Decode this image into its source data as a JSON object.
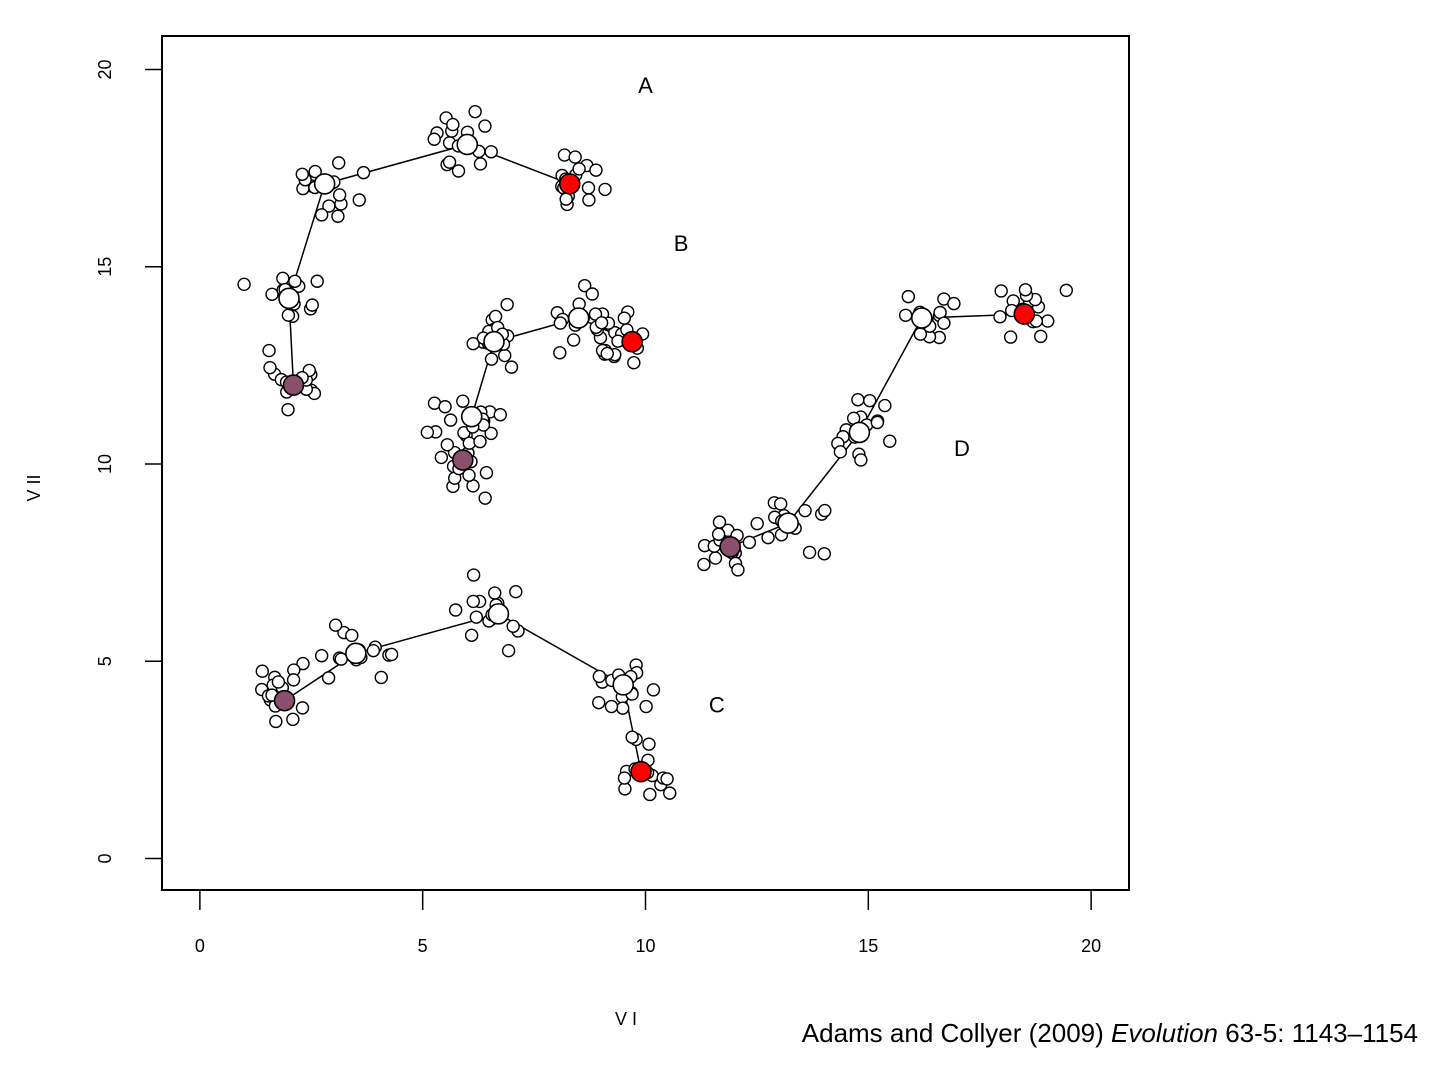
{
  "chart_data": {
    "type": "scatter",
    "title": "",
    "xlabel": "V I",
    "ylabel": "V II",
    "xlim": [
      -0.85,
      20.85
    ],
    "ylim": [
      -0.8,
      20.85
    ],
    "xticks": [
      "0",
      "5",
      "10",
      "15",
      "20"
    ],
    "yticks": [
      "0",
      "5",
      "10",
      "15",
      "20"
    ],
    "grid": false,
    "legend": "none",
    "colors": {
      "point_fill": "#ffffff",
      "point_stroke": "#000000",
      "start_fill": "#8b4f6e",
      "end_fill": "#ff0000",
      "path": "#000000"
    },
    "groups": [
      {
        "label": "A",
        "label_pos": [
          10.0,
          19.4
        ],
        "means": [
          [
            2.1,
            12.0
          ],
          [
            2.0,
            14.2
          ],
          [
            2.8,
            17.1
          ],
          [
            6.0,
            18.1
          ],
          [
            8.3,
            17.1
          ]
        ],
        "start_index": 0,
        "end_index": 4
      },
      {
        "label": "B",
        "label_pos": [
          10.8,
          15.4
        ],
        "means": [
          [
            5.9,
            10.1
          ],
          [
            6.1,
            11.2
          ],
          [
            6.6,
            13.1
          ],
          [
            8.5,
            13.7
          ],
          [
            9.7,
            13.1
          ]
        ],
        "start_index": 0,
        "end_index": 4
      },
      {
        "label": "C",
        "label_pos": [
          11.6,
          3.7
        ],
        "means": [
          [
            1.9,
            4.0
          ],
          [
            3.5,
            5.2
          ],
          [
            6.7,
            6.2
          ],
          [
            9.5,
            4.4
          ],
          [
            9.9,
            2.2
          ]
        ],
        "start_index": 0,
        "end_index": 4
      },
      {
        "label": "D",
        "label_pos": [
          17.1,
          10.2
        ],
        "means": [
          [
            11.9,
            7.9
          ],
          [
            13.2,
            8.5
          ],
          [
            14.8,
            10.8
          ],
          [
            16.2,
            13.7
          ],
          [
            18.5,
            13.8
          ]
        ],
        "start_index": 0,
        "end_index": 4
      }
    ]
  },
  "citation": {
    "prefix": "Adams and Collyer (2009) ",
    "journal": "Evolution",
    "suffix": " 63-5: 1143–1154"
  }
}
